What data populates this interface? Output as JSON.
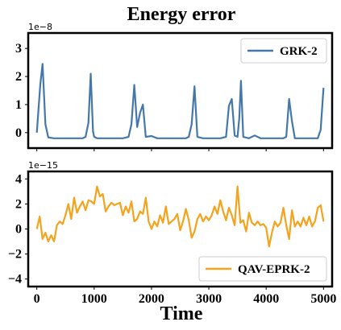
{
  "title": "Energy error",
  "xlabel": "Time",
  "chart_data": [
    {
      "type": "line",
      "offset_label": "1e−8",
      "legend_position": "upper right",
      "xlim": [
        -150,
        5150
      ],
      "ylim": [
        -0.55,
        3.55
      ],
      "xticks": [
        0,
        1000,
        2000,
        3000,
        4000,
        5000
      ],
      "xtick_labels": [],
      "yticks": [
        0,
        1,
        2,
        3
      ],
      "ytick_labels": [
        "0",
        "1",
        "2",
        "3"
      ],
      "series": [
        {
          "name": "GRK-2",
          "color": "#4477aa",
          "x": [
            0,
            60,
            100,
            150,
            200,
            300,
            400,
            500,
            600,
            700,
            800,
            850,
            900,
            940,
            980,
            1000,
            1050,
            1100,
            1200,
            1300,
            1400,
            1500,
            1600,
            1650,
            1700,
            1750,
            1800,
            1850,
            1900,
            2000,
            2100,
            2200,
            2300,
            2400,
            2500,
            2600,
            2650,
            2700,
            2750,
            2800,
            2900,
            3000,
            3100,
            3200,
            3300,
            3350,
            3400,
            3450,
            3500,
            3530,
            3560,
            3600,
            3700,
            3800,
            3900,
            4000,
            4100,
            4200,
            4300,
            4350,
            4400,
            4450,
            4500,
            4600,
            4700,
            4800,
            4900,
            4950,
            5000
          ],
          "values": [
            0.0,
            1.7,
            2.45,
            0.3,
            -0.17,
            -0.2,
            -0.2,
            -0.2,
            -0.2,
            -0.2,
            -0.2,
            -0.15,
            0.35,
            2.1,
            0.05,
            -0.15,
            -0.2,
            -0.2,
            -0.2,
            -0.2,
            -0.2,
            -0.2,
            -0.15,
            0.3,
            1.7,
            0.2,
            0.7,
            1.0,
            -0.15,
            -0.12,
            -0.2,
            -0.2,
            -0.2,
            -0.2,
            -0.2,
            -0.2,
            -0.15,
            0.3,
            1.65,
            -0.15,
            -0.2,
            -0.2,
            -0.2,
            -0.2,
            -0.15,
            0.95,
            1.2,
            -0.1,
            -0.15,
            0.5,
            1.85,
            -0.15,
            -0.2,
            -0.1,
            -0.2,
            -0.2,
            -0.2,
            -0.2,
            -0.2,
            -0.15,
            1.2,
            0.4,
            -0.2,
            -0.2,
            -0.2,
            -0.2,
            -0.2,
            0.1,
            1.6
          ]
        }
      ]
    },
    {
      "type": "line",
      "offset_label": "1e−15",
      "legend_position": "lower right",
      "xlim": [
        -150,
        5150
      ],
      "ylim": [
        -4.6,
        4.6
      ],
      "xticks": [
        0,
        1000,
        2000,
        3000,
        4000,
        5000
      ],
      "xtick_labels": [
        "0",
        "1000",
        "2000",
        "3000",
        "4000",
        "5000"
      ],
      "yticks": [
        -4,
        -2,
        0,
        2,
        4
      ],
      "ytick_labels": [
        "−4",
        "−2",
        "0",
        "2",
        "4"
      ],
      "series": [
        {
          "name": "QAV-EPRK-2",
          "color": "#f5a21c",
          "x": [
            0,
            50,
            100,
            150,
            200,
            250,
            300,
            350,
            400,
            450,
            500,
            550,
            600,
            650,
            700,
            750,
            800,
            850,
            900,
            950,
            1000,
            1050,
            1100,
            1150,
            1200,
            1250,
            1300,
            1350,
            1400,
            1450,
            1500,
            1550,
            1600,
            1650,
            1700,
            1750,
            1800,
            1850,
            1900,
            1950,
            2000,
            2050,
            2100,
            2150,
            2200,
            2250,
            2300,
            2350,
            2400,
            2450,
            2500,
            2550,
            2600,
            2650,
            2700,
            2750,
            2800,
            2850,
            2900,
            2950,
            3000,
            3050,
            3100,
            3150,
            3200,
            3250,
            3300,
            3350,
            3400,
            3450,
            3500,
            3550,
            3600,
            3650,
            3700,
            3750,
            3800,
            3850,
            3900,
            3950,
            4000,
            4050,
            4100,
            4150,
            4200,
            4250,
            4300,
            4350,
            4400,
            4450,
            4500,
            4550,
            4600,
            4650,
            4700,
            4750,
            4800,
            4850,
            4900,
            4950,
            5000
          ],
          "values": [
            0.0,
            1.0,
            -0.8,
            -0.3,
            -1.0,
            -0.5,
            -1.0,
            0.3,
            0.6,
            0.4,
            1.1,
            2.0,
            0.8,
            2.5,
            1.3,
            1.8,
            2.2,
            1.5,
            2.3,
            2.2,
            2.0,
            3.4,
            2.6,
            2.8,
            1.4,
            1.8,
            2.1,
            1.9,
            2.0,
            2.1,
            1.1,
            1.8,
            1.3,
            2.2,
            0.6,
            0.8,
            1.4,
            1.2,
            2.5,
            0.6,
            0.0,
            0.6,
            0.2,
            1.1,
            0.5,
            1.8,
            0.4,
            0.6,
            0.8,
            1.2,
            -0.1,
            0.6,
            1.6,
            0.7,
            -0.7,
            -0.2,
            0.8,
            1.2,
            0.6,
            1.0,
            0.7,
            1.1,
            1.8,
            1.2,
            2.3,
            1.4,
            0.7,
            1.7,
            1.1,
            0.3,
            3.4,
            0.5,
            0.7,
            -0.2,
            1.3,
            0.5,
            0.3,
            0.6,
            0.3,
            0.4,
            0.1,
            -1.4,
            -0.3,
            0.6,
            0.2,
            0.5,
            1.7,
            0.3,
            -0.8,
            1.5,
            0.2,
            0.6,
            0.2,
            0.9,
            0.3,
            1.0,
            0.2,
            0.6,
            1.7,
            1.9,
            0.6
          ]
        }
      ]
    }
  ]
}
